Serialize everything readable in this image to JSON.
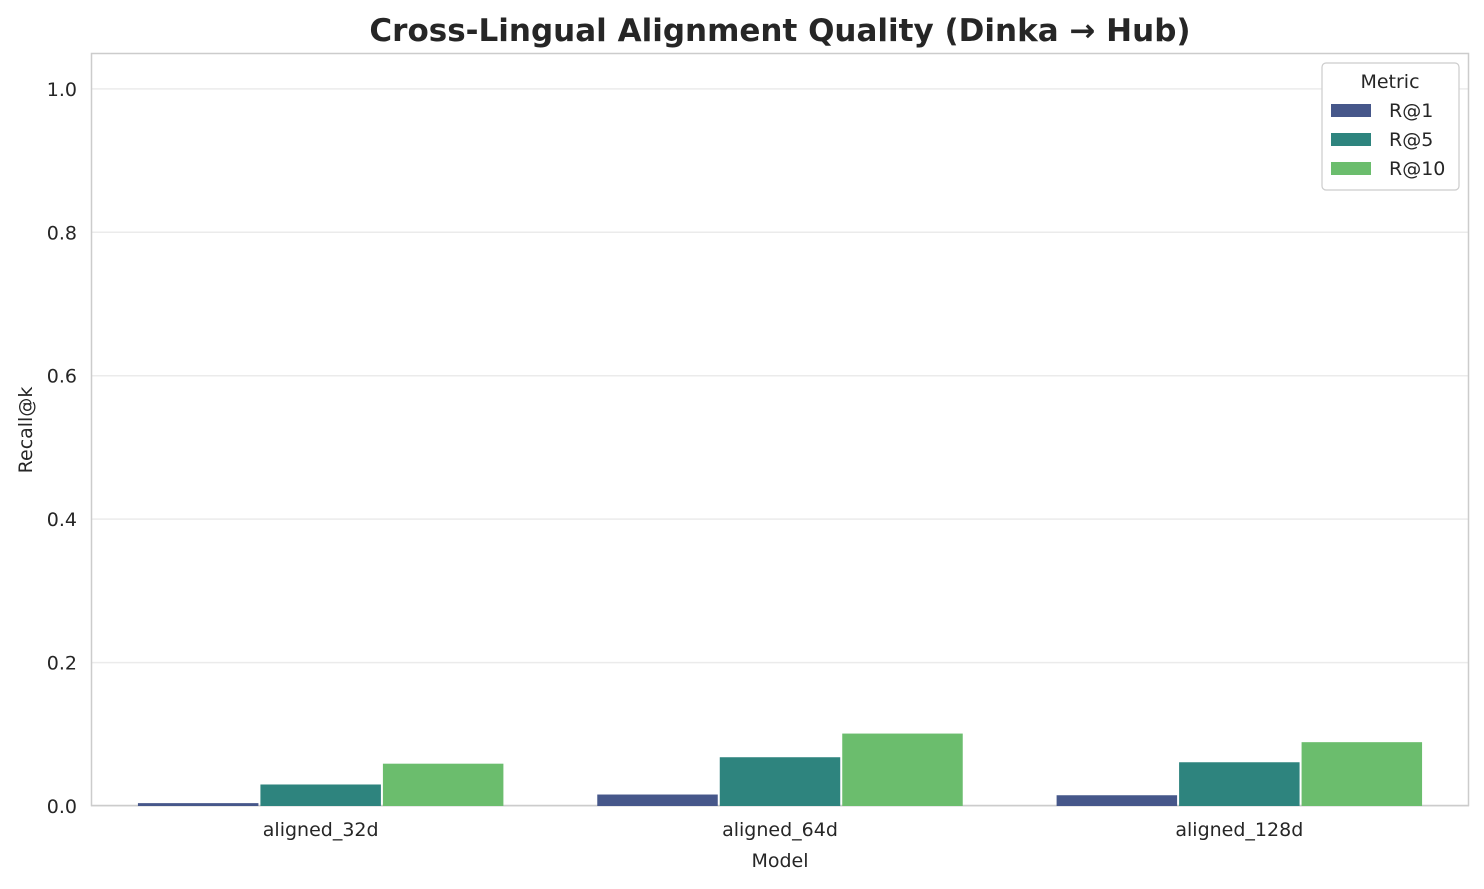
{
  "chart_data": {
    "type": "bar",
    "title": "Cross-Lingual Alignment Quality (Dinka → Hub)",
    "xlabel": "Model",
    "ylabel": "Recall@k",
    "ylim": [
      0,
      1.05
    ],
    "yticks": [
      "0.0",
      "0.2",
      "0.4",
      "0.6",
      "0.8",
      "1.0"
    ],
    "grid": true,
    "categories": [
      "aligned_32d",
      "aligned_64d",
      "aligned_128d"
    ],
    "legend": {
      "title": "Metric",
      "placement": "top-right"
    },
    "series": [
      {
        "name": "R@1",
        "color": "#46578a",
        "values": [
          0.004,
          0.016,
          0.015
        ]
      },
      {
        "name": "R@5",
        "color": "#2e847e",
        "values": [
          0.03,
          0.068,
          0.061
        ]
      },
      {
        "name": "R@10",
        "color": "#6bbd6d",
        "values": [
          0.059,
          0.101,
          0.089
        ]
      }
    ]
  }
}
